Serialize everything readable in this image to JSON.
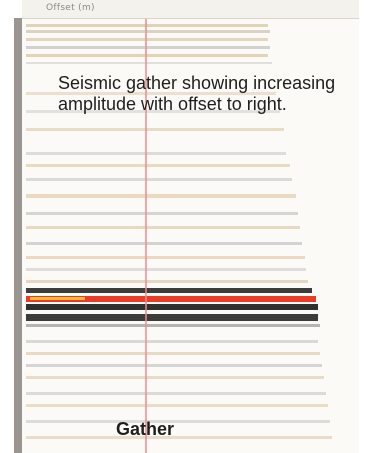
{
  "figure": {
    "axis_title": "Offset (m)",
    "caption": "Seismic gather showing increasing amplitude with offset to right.",
    "footer_label": "Gather"
  },
  "colors": {
    "marker_line": "#f08a8a",
    "hot_event": "#e8301c",
    "hot_core": "#f6d23a",
    "dark_event": "#1a1a1a"
  }
}
